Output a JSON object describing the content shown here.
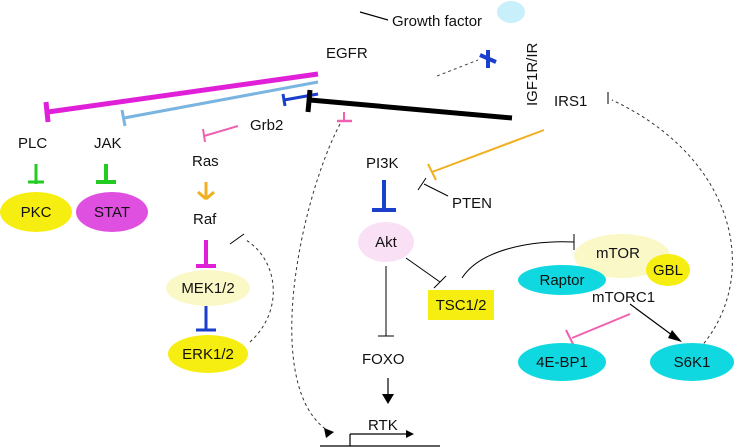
{
  "diagram": {
    "labels": {
      "growth_factor": "Growth factor",
      "egfr": "EGFR",
      "igf1r": "IGF1R/IR",
      "irs1": "IRS1",
      "plc": "PLC",
      "jak": "JAK",
      "grb2": "Grb2",
      "ras": "Ras",
      "raf": "Raf",
      "pi3k": "PI3K",
      "pten": "PTEN",
      "mtorc1": "mTORC1",
      "foxo": "FOXO",
      "rtk": "RTK"
    },
    "nodes": {
      "pkc": "PKC",
      "stat": "STAT",
      "mek": "MEK1/2",
      "erk": "ERK1/2",
      "akt": "Akt",
      "tsc": "TSC1/2",
      "mtor": "mTOR",
      "raptor": "Raptor",
      "gbl": "GBL",
      "ebp1": "4E-BP1",
      "s6k1": "S6K1"
    },
    "colors": {
      "magenta": "#e020d8",
      "light_blue": "#7ab4e0",
      "blue": "#1a3fcc",
      "green": "#22cc22",
      "orange": "#f0b020",
      "pink": "#f060b0",
      "yellow": "#f5ee10",
      "pale_yellow": "#fbf8c8",
      "cyan": "#10d8e0",
      "pale_pink": "#fae0f5",
      "stat_pink": "#e050e0",
      "black": "#000000"
    }
  }
}
